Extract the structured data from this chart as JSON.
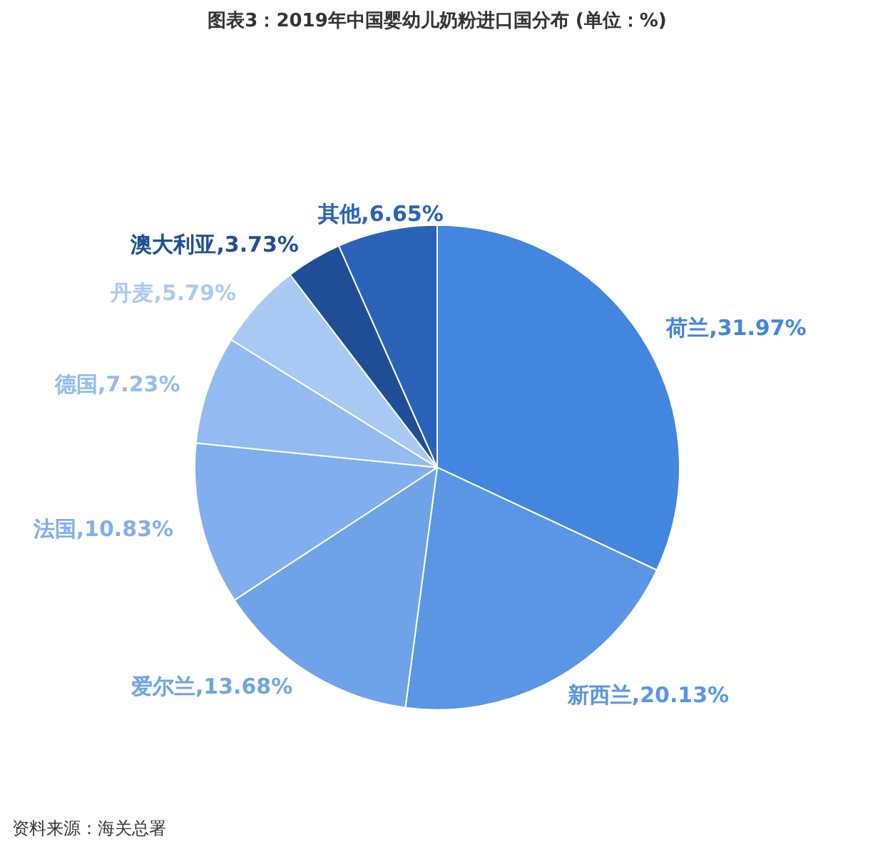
{
  "chart_data": {
    "type": "pie",
    "title": "图表3：2019年中国婴幼儿奶粉进口国分布 (单位：%)",
    "categories": [
      "荷兰",
      "新西兰",
      "爱尔兰",
      "法国",
      "德国",
      "丹麦",
      "澳大利亚",
      "其他"
    ],
    "values": [
      31.97,
      20.13,
      13.68,
      10.83,
      7.23,
      5.79,
      3.73,
      6.65
    ],
    "value_labels": [
      "31.97%",
      "20.13%",
      "13.68%",
      "10.83%",
      "7.23%",
      "5.79%",
      "3.73%",
      "6.65%"
    ],
    "colors": [
      "#4286e0",
      "#5a95e6",
      "#6ea3ea",
      "#80aeee",
      "#93bbf1",
      "#a9c9f5",
      "#1f4e96",
      "#2a62b8"
    ],
    "annotations": [
      "资料来源：海关总署"
    ]
  }
}
